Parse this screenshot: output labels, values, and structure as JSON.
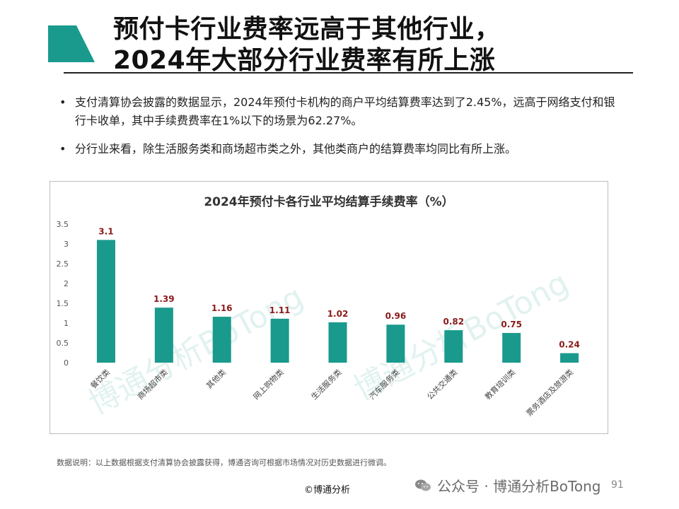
{
  "title": {
    "line1": "预付卡行业费率远高于其他行业，",
    "line2": "2024年大部分行业费率有所上涨"
  },
  "bullets": [
    {
      "marker": "•",
      "text": "支付清算协会披露的数据显示，2024年预付卡机构的商户平均结算费率达到了2.45%，远高于网络支付和银行卡收单，其中手续费费率在1%以下的场景为62.27%。"
    },
    {
      "marker": "•",
      "text": "分行业来看，除生活服务类和商场超市类之外，其他类商户的结算费率均同比有所上涨。"
    }
  ],
  "chart_data": {
    "type": "bar",
    "title": "2024年预付卡各行业平均结算手续费率（%）",
    "categories": [
      "餐饮类",
      "商场超市类",
      "其他类",
      "网上购物类",
      "生活服务类",
      "汽车服务类",
      "公共交通类",
      "教育培训类",
      "票务酒店及旅游类"
    ],
    "values": [
      3.1,
      1.39,
      1.16,
      1.11,
      1.02,
      0.96,
      0.82,
      0.75,
      0.24
    ],
    "value_labels": [
      "3.1",
      "1.39",
      "1.16",
      "1.11",
      "1.02",
      "0.96",
      "0.82",
      "0.75",
      "0.24"
    ],
    "ylim": [
      0,
      3.5
    ],
    "yticks": [
      "0",
      "0.5",
      "1",
      "1.5",
      "2",
      "2.5",
      "3",
      "3.5"
    ],
    "xlabel": "",
    "ylabel": "",
    "grid": false,
    "legend": "none"
  },
  "colors": {
    "bar": "#1a9a8c",
    "label": "#8b1a1a",
    "accent": "#1a9a8c"
  },
  "watermark": {
    "text1": "博通分析BoTong",
    "text2": "博通分析BoTong"
  },
  "footnote": "数据说明：以上数据根据支付清算协会披露获得，博通咨询可根据市场情况对历史数据进行微调。",
  "copyright": "©博通分析",
  "wechat": {
    "icon": "wechat-icon",
    "text": "公众号 · 博通分析BoTong"
  },
  "page_number": "91"
}
